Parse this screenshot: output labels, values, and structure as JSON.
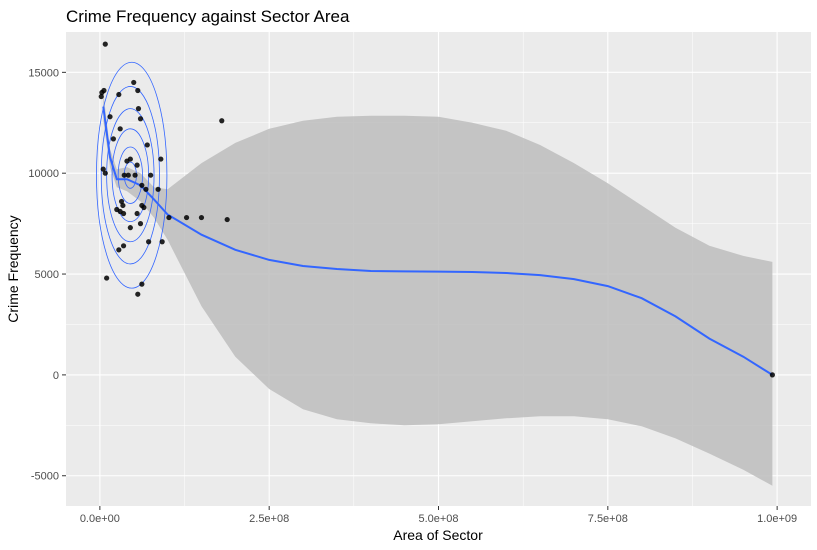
{
  "chart_data": {
    "type": "scatter",
    "title": "Crime Frequency against Sector Area",
    "xlabel": "Area of Sector",
    "ylabel": "Crime Frequency",
    "xlim": [
      -50000000,
      1050000000
    ],
    "ylim": [
      -6500,
      17000
    ],
    "x_ticks": [
      0,
      250000000,
      500000000,
      750000000,
      1000000000
    ],
    "x_tick_labels": [
      "0.0e+00",
      "2.5e+08",
      "5.0e+08",
      "7.5e+08",
      "1.0e+09"
    ],
    "y_ticks": [
      -5000,
      0,
      5000,
      10000,
      15000
    ],
    "y_tick_labels": [
      "-5000",
      "0",
      "5000",
      "10000",
      "15000"
    ],
    "grid": true,
    "background": "#ebebeb",
    "colors": {
      "points": "#000000",
      "smooth": "#3366ff",
      "ribbon": "#bdbdbd",
      "contour": "#3366ff"
    },
    "points": [
      {
        "x": 8000000,
        "y": 16400
      },
      {
        "x": 2000000,
        "y": 13800
      },
      {
        "x": 3000000,
        "y": 14000
      },
      {
        "x": 6000000,
        "y": 14100
      },
      {
        "x": 28000000,
        "y": 13900
      },
      {
        "x": 50000000,
        "y": 14500
      },
      {
        "x": 56000000,
        "y": 14100
      },
      {
        "x": 57000000,
        "y": 13200
      },
      {
        "x": 15000000,
        "y": 12800
      },
      {
        "x": 60000000,
        "y": 12700
      },
      {
        "x": 30000000,
        "y": 12200
      },
      {
        "x": 180000000,
        "y": 12600
      },
      {
        "x": 20000000,
        "y": 11700
      },
      {
        "x": 70000000,
        "y": 11400
      },
      {
        "x": 90000000,
        "y": 10700
      },
      {
        "x": 45000000,
        "y": 10700
      },
      {
        "x": 40000000,
        "y": 10600
      },
      {
        "x": 55000000,
        "y": 10400
      },
      {
        "x": 5000000,
        "y": 10200
      },
      {
        "x": 8000000,
        "y": 10000
      },
      {
        "x": 36000000,
        "y": 9900
      },
      {
        "x": 42000000,
        "y": 9900
      },
      {
        "x": 52000000,
        "y": 9900
      },
      {
        "x": 75000000,
        "y": 9900
      },
      {
        "x": 62000000,
        "y": 9400
      },
      {
        "x": 68000000,
        "y": 9200
      },
      {
        "x": 86000000,
        "y": 9200
      },
      {
        "x": 32000000,
        "y": 8600
      },
      {
        "x": 34000000,
        "y": 8400
      },
      {
        "x": 62000000,
        "y": 8400
      },
      {
        "x": 30000000,
        "y": 8100
      },
      {
        "x": 35000000,
        "y": 8000
      },
      {
        "x": 55000000,
        "y": 8000
      },
      {
        "x": 25000000,
        "y": 8200
      },
      {
        "x": 65000000,
        "y": 8300
      },
      {
        "x": 102000000,
        "y": 7800
      },
      {
        "x": 128000000,
        "y": 7800
      },
      {
        "x": 150000000,
        "y": 7800
      },
      {
        "x": 188000000,
        "y": 7700
      },
      {
        "x": 60000000,
        "y": 7500
      },
      {
        "x": 45000000,
        "y": 7300
      },
      {
        "x": 92000000,
        "y": 6600
      },
      {
        "x": 72000000,
        "y": 6600
      },
      {
        "x": 35000000,
        "y": 6400
      },
      {
        "x": 28000000,
        "y": 6200
      },
      {
        "x": 10000000,
        "y": 4800
      },
      {
        "x": 62000000,
        "y": 4500
      },
      {
        "x": 56000000,
        "y": 4000
      },
      {
        "x": 993000000,
        "y": 0
      }
    ],
    "smooth_line": {
      "x": [
        5000000,
        15000000,
        25000000,
        40000000,
        60000000,
        80000000,
        100000000,
        150000000,
        200000000,
        250000000,
        300000000,
        350000000,
        400000000,
        450000000,
        500000000,
        550000000,
        600000000,
        650000000,
        700000000,
        750000000,
        800000000,
        850000000,
        900000000,
        950000000,
        993000000
      ],
      "y": [
        13300,
        10800,
        9700,
        9700,
        9400,
        8700,
        7950,
        6950,
        6200,
        5700,
        5400,
        5250,
        5150,
        5130,
        5120,
        5100,
        5050,
        4950,
        4750,
        4400,
        3800,
        2900,
        1800,
        900,
        0
      ]
    },
    "confidence_band": {
      "x": [
        5000000,
        15000000,
        25000000,
        40000000,
        60000000,
        80000000,
        100000000,
        150000000,
        200000000,
        250000000,
        300000000,
        350000000,
        400000000,
        450000000,
        500000000,
        550000000,
        600000000,
        650000000,
        700000000,
        750000000,
        800000000,
        850000000,
        900000000,
        950000000,
        993000000
      ],
      "upper": [
        14000,
        11200,
        10200,
        10300,
        10000,
        9300,
        9200,
        10500,
        11500,
        12200,
        12600,
        12800,
        12850,
        12850,
        12800,
        12500,
        12100,
        11400,
        10500,
        9500,
        8400,
        7300,
        6400,
        5900,
        5600
      ],
      "lower": [
        12600,
        10300,
        9300,
        9100,
        8600,
        7800,
        6700,
        3400,
        900,
        -700,
        -1700,
        -2200,
        -2400,
        -2500,
        -2450,
        -2300,
        -2150,
        -2050,
        -2050,
        -2200,
        -2550,
        -3150,
        -3900,
        -4700,
        -5500
      ]
    },
    "density_contours": [
      {
        "cx": 45000000,
        "cy": 9900,
        "rx": 9000000,
        "ry": 650
      },
      {
        "cx": 45000000,
        "cy": 9900,
        "rx": 18000000,
        "ry": 1400
      },
      {
        "cx": 45000000,
        "cy": 9900,
        "rx": 27000000,
        "ry": 2300
      },
      {
        "cx": 45000000,
        "cy": 9900,
        "rx": 35000000,
        "ry": 3300
      },
      {
        "cx": 45000000,
        "cy": 9900,
        "rx": 43000000,
        "ry": 4400
      },
      {
        "cx": 47000000,
        "cy": 9900,
        "rx": 52000000,
        "ry": 5600
      }
    ]
  }
}
